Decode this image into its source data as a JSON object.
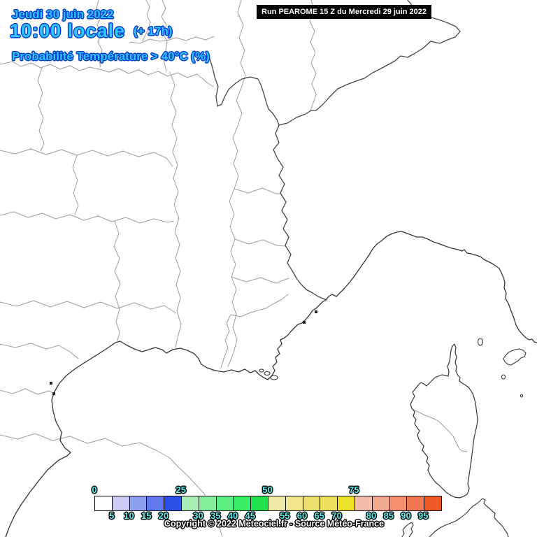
{
  "header": {
    "date_line": "Jeudi 30 juin 2022",
    "time_line": "10:00 locale",
    "time_offset": "(+ 17h)",
    "subtitle": "Probabilité Température > 40°C (%)",
    "run_info": "Run PEAROME 15 Z du Mercredi 29 juin 2022"
  },
  "legend": {
    "top_ticks": [
      0,
      25,
      50,
      75
    ],
    "bottom_ticks": [
      5,
      10,
      15,
      20,
      30,
      35,
      40,
      45,
      55,
      60,
      65,
      70,
      80,
      85,
      90,
      95
    ],
    "cells": [
      {
        "from": 0,
        "to": 5,
        "color": "#ffffff"
      },
      {
        "from": 5,
        "to": 10,
        "color": "#ccccf6"
      },
      {
        "from": 10,
        "to": 15,
        "color": "#8fa0f0"
      },
      {
        "from": 15,
        "to": 20,
        "color": "#5f7bee"
      },
      {
        "from": 20,
        "to": 25,
        "color": "#2a50e8"
      },
      {
        "from": 25,
        "to": 30,
        "color": "#a8eeb2"
      },
      {
        "from": 30,
        "to": 35,
        "color": "#84ee9c"
      },
      {
        "from": 35,
        "to": 40,
        "color": "#5cee80"
      },
      {
        "from": 40,
        "to": 45,
        "color": "#38ee64"
      },
      {
        "from": 45,
        "to": 50,
        "color": "#20e24c"
      },
      {
        "from": 50,
        "to": 55,
        "color": "#eeeaa8"
      },
      {
        "from": 55,
        "to": 60,
        "color": "#efe68c"
      },
      {
        "from": 60,
        "to": 65,
        "color": "#eee070"
      },
      {
        "from": 65,
        "to": 70,
        "color": "#eee05a"
      },
      {
        "from": 70,
        "to": 75,
        "color": "#f0e02a"
      },
      {
        "from": 75,
        "to": 80,
        "color": "#f4beaa"
      },
      {
        "from": 80,
        "to": 85,
        "color": "#f2a88c"
      },
      {
        "from": 85,
        "to": 90,
        "color": "#f29070"
      },
      {
        "from": 90,
        "to": 95,
        "color": "#f07850"
      },
      {
        "from": 95,
        "to": 100,
        "color": "#ee5a28"
      }
    ]
  },
  "footer": {
    "copyright": "Copyright © 2022 Meteociel.fr - Source Météo-France"
  },
  "colors": {
    "title_fill": "#2fc8ff",
    "title_outline": "#0238d8",
    "tick_fill": "#5af2f2",
    "run_bg": "#000000",
    "run_fg": "#ffffff",
    "coast": "#333333",
    "border": "#444444",
    "department": "#9c9c9c"
  }
}
